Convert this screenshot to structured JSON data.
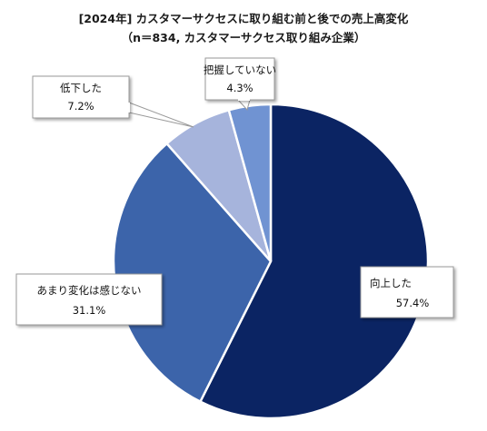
{
  "title_line1": "[2024年] カスタマーサクセスに取り組む前と後での売上高変化",
  "title_line2": "（n＝834, カスタマーサクセス取り組み企業）",
  "chart_data": {
    "type": "pie",
    "start_angle_deg": 0,
    "direction": "clockwise",
    "slices": [
      {
        "label": "向上した",
        "value": 57.4,
        "value_label": "57.4%",
        "color": "#0b2463"
      },
      {
        "label": "あまり変化は感じない",
        "value": 31.1,
        "value_label": "31.1%",
        "color": "#3c64aa"
      },
      {
        "label": "低下した",
        "value": 7.2,
        "value_label": "7.2%",
        "color": "#a6b4dc"
      },
      {
        "label": "把握していない",
        "value": 4.3,
        "value_label": "4.3%",
        "color": "#7093d2"
      }
    ]
  }
}
